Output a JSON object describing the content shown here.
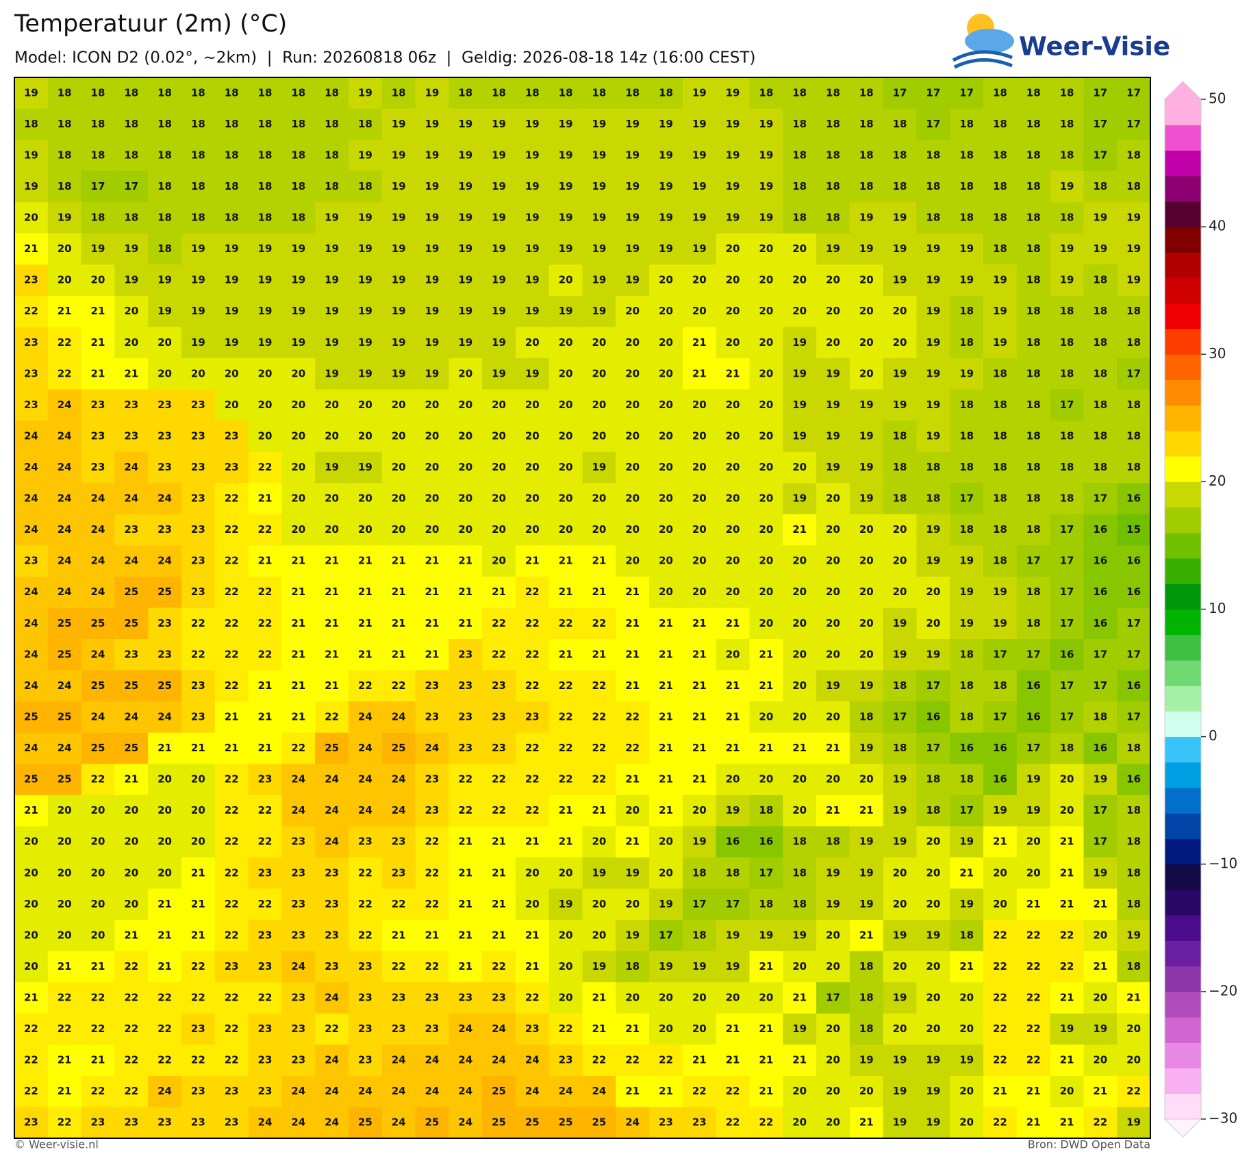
{
  "header": {
    "title": "Temperatuur (2m) (°C)",
    "subtitle": "Model: ICON D2 (0.02°, ~2km)  |  Run: 20260818 06z  |  Geldig: 2026-08-18 14z (16:00 CEST)",
    "logo": "Weer-Visie"
  },
  "footer": {
    "left": "© Weer-visie.nl",
    "right": "Bron: DWD Open Data"
  },
  "map": {
    "values": [
      [
        19,
        18,
        18,
        18,
        18,
        18,
        18,
        18,
        18,
        18,
        19,
        18,
        19,
        18,
        18,
        18,
        18,
        18,
        18,
        18,
        19,
        19,
        18,
        18,
        18,
        18,
        17,
        17,
        17,
        18,
        18,
        18,
        17,
        17
      ],
      [
        18,
        18,
        18,
        18,
        18,
        18,
        18,
        18,
        18,
        18,
        18,
        19,
        19,
        19,
        19,
        19,
        19,
        19,
        19,
        19,
        19,
        19,
        19,
        18,
        18,
        18,
        18,
        17,
        18,
        18,
        18,
        18,
        17,
        17
      ],
      [
        19,
        18,
        18,
        18,
        18,
        18,
        18,
        18,
        18,
        18,
        19,
        19,
        19,
        19,
        19,
        19,
        19,
        19,
        19,
        19,
        19,
        19,
        19,
        18,
        18,
        18,
        18,
        18,
        18,
        18,
        18,
        18,
        17,
        18
      ],
      [
        19,
        18,
        17,
        17,
        18,
        18,
        18,
        18,
        18,
        18,
        18,
        19,
        19,
        19,
        19,
        19,
        19,
        19,
        19,
        19,
        19,
        19,
        19,
        18,
        18,
        18,
        18,
        18,
        18,
        18,
        18,
        19,
        18,
        18
      ],
      [
        20,
        19,
        18,
        18,
        18,
        18,
        18,
        18,
        18,
        19,
        19,
        19,
        19,
        19,
        19,
        19,
        19,
        19,
        19,
        19,
        19,
        19,
        19,
        18,
        18,
        19,
        19,
        18,
        18,
        18,
        18,
        18,
        19,
        19
      ],
      [
        21,
        20,
        19,
        19,
        18,
        19,
        19,
        19,
        19,
        19,
        19,
        19,
        19,
        19,
        19,
        19,
        19,
        19,
        19,
        19,
        19,
        20,
        20,
        20,
        19,
        19,
        19,
        19,
        19,
        18,
        18,
        19,
        19,
        19
      ],
      [
        23,
        20,
        20,
        19,
        19,
        19,
        19,
        19,
        19,
        19,
        19,
        19,
        19,
        19,
        19,
        19,
        20,
        19,
        19,
        20,
        20,
        20,
        20,
        20,
        20,
        20,
        19,
        19,
        19,
        19,
        18,
        19,
        18,
        19
      ],
      [
        22,
        21,
        21,
        20,
        19,
        19,
        19,
        19,
        19,
        19,
        19,
        19,
        19,
        19,
        19,
        19,
        19,
        19,
        20,
        20,
        20,
        20,
        20,
        20,
        20,
        20,
        20,
        19,
        18,
        19,
        18,
        18,
        18,
        18
      ],
      [
        23,
        22,
        21,
        20,
        20,
        19,
        19,
        19,
        19,
        19,
        19,
        19,
        19,
        19,
        19,
        20,
        20,
        20,
        20,
        20,
        21,
        20,
        20,
        19,
        20,
        20,
        20,
        19,
        18,
        19,
        18,
        18,
        18,
        18
      ],
      [
        23,
        22,
        21,
        21,
        20,
        20,
        20,
        20,
        20,
        19,
        19,
        19,
        19,
        20,
        19,
        19,
        20,
        20,
        20,
        20,
        21,
        21,
        20,
        19,
        19,
        20,
        19,
        19,
        19,
        18,
        18,
        18,
        18,
        17
      ],
      [
        23,
        24,
        23,
        23,
        23,
        23,
        20,
        20,
        20,
        20,
        20,
        20,
        20,
        20,
        20,
        20,
        20,
        20,
        20,
        20,
        20,
        20,
        20,
        19,
        19,
        19,
        19,
        19,
        18,
        18,
        18,
        17,
        18,
        18
      ],
      [
        24,
        24,
        23,
        23,
        23,
        23,
        23,
        20,
        20,
        20,
        20,
        20,
        20,
        20,
        20,
        20,
        20,
        20,
        20,
        20,
        20,
        20,
        20,
        19,
        19,
        19,
        18,
        19,
        18,
        18,
        18,
        18,
        18,
        18
      ],
      [
        24,
        24,
        23,
        24,
        23,
        23,
        23,
        22,
        20,
        19,
        19,
        20,
        20,
        20,
        20,
        20,
        20,
        19,
        20,
        20,
        20,
        20,
        20,
        20,
        19,
        19,
        18,
        18,
        18,
        18,
        18,
        18,
        18,
        18
      ],
      [
        24,
        24,
        24,
        24,
        24,
        23,
        22,
        21,
        20,
        20,
        20,
        20,
        20,
        20,
        20,
        20,
        20,
        20,
        20,
        20,
        20,
        20,
        20,
        19,
        20,
        19,
        18,
        18,
        17,
        18,
        18,
        18,
        17,
        16
      ],
      [
        24,
        24,
        24,
        23,
        23,
        23,
        22,
        22,
        20,
        20,
        20,
        20,
        20,
        20,
        20,
        20,
        20,
        20,
        20,
        20,
        20,
        20,
        20,
        21,
        20,
        20,
        20,
        19,
        18,
        18,
        18,
        17,
        16,
        15
      ],
      [
        23,
        24,
        24,
        24,
        24,
        23,
        22,
        21,
        21,
        21,
        21,
        21,
        21,
        21,
        20,
        21,
        21,
        21,
        20,
        20,
        20,
        20,
        20,
        20,
        20,
        20,
        20,
        19,
        19,
        18,
        17,
        17,
        16,
        16
      ],
      [
        24,
        24,
        24,
        25,
        25,
        23,
        22,
        22,
        21,
        21,
        21,
        21,
        21,
        21,
        21,
        22,
        21,
        21,
        21,
        20,
        20,
        20,
        20,
        20,
        20,
        20,
        20,
        20,
        19,
        19,
        18,
        17,
        16,
        16
      ],
      [
        24,
        25,
        25,
        25,
        23,
        22,
        22,
        22,
        21,
        21,
        21,
        21,
        21,
        21,
        22,
        22,
        22,
        22,
        21,
        21,
        21,
        21,
        20,
        20,
        20,
        20,
        19,
        20,
        19,
        19,
        18,
        17,
        16,
        17
      ],
      [
        24,
        25,
        24,
        23,
        23,
        22,
        22,
        22,
        21,
        21,
        21,
        21,
        21,
        23,
        22,
        22,
        21,
        21,
        21,
        21,
        21,
        20,
        21,
        20,
        20,
        20,
        19,
        19,
        18,
        17,
        17,
        16,
        17,
        17
      ],
      [
        24,
        24,
        25,
        25,
        25,
        23,
        22,
        21,
        21,
        21,
        22,
        22,
        23,
        23,
        23,
        22,
        22,
        22,
        21,
        21,
        21,
        21,
        21,
        20,
        19,
        19,
        18,
        17,
        18,
        18,
        16,
        17,
        17,
        16
      ],
      [
        25,
        25,
        24,
        24,
        24,
        23,
        21,
        21,
        21,
        22,
        24,
        24,
        23,
        23,
        23,
        23,
        22,
        22,
        22,
        21,
        21,
        21,
        20,
        20,
        20,
        18,
        17,
        16,
        18,
        17,
        16,
        17,
        18,
        17
      ],
      [
        24,
        24,
        25,
        25,
        21,
        21,
        21,
        21,
        22,
        25,
        24,
        25,
        24,
        23,
        23,
        22,
        22,
        22,
        22,
        21,
        21,
        21,
        21,
        21,
        21,
        19,
        18,
        17,
        16,
        16,
        17,
        18,
        16,
        18
      ],
      [
        25,
        25,
        22,
        21,
        20,
        20,
        22,
        23,
        24,
        24,
        24,
        24,
        23,
        22,
        22,
        22,
        22,
        22,
        21,
        21,
        21,
        20,
        20,
        20,
        20,
        20,
        19,
        18,
        18,
        16,
        19,
        20,
        19,
        16
      ],
      [
        21,
        20,
        20,
        20,
        20,
        20,
        22,
        22,
        24,
        24,
        24,
        24,
        23,
        22,
        22,
        22,
        21,
        21,
        20,
        21,
        20,
        19,
        18,
        20,
        21,
        21,
        19,
        18,
        17,
        19,
        19,
        20,
        17,
        18
      ],
      [
        20,
        20,
        20,
        20,
        20,
        20,
        22,
        22,
        23,
        24,
        23,
        23,
        22,
        21,
        21,
        21,
        21,
        20,
        21,
        20,
        19,
        16,
        16,
        18,
        18,
        19,
        19,
        20,
        19,
        21,
        20,
        21,
        17,
        18
      ],
      [
        20,
        20,
        20,
        20,
        20,
        21,
        22,
        23,
        23,
        23,
        22,
        23,
        22,
        21,
        21,
        20,
        20,
        19,
        19,
        20,
        18,
        18,
        17,
        18,
        19,
        19,
        20,
        20,
        21,
        20,
        20,
        21,
        19,
        18
      ],
      [
        20,
        20,
        20,
        20,
        21,
        21,
        22,
        22,
        23,
        23,
        22,
        22,
        22,
        21,
        21,
        20,
        19,
        20,
        20,
        19,
        17,
        17,
        18,
        18,
        19,
        19,
        20,
        20,
        19,
        20,
        21,
        21,
        21,
        18
      ],
      [
        20,
        20,
        20,
        21,
        21,
        21,
        22,
        23,
        23,
        23,
        22,
        21,
        21,
        21,
        21,
        21,
        20,
        20,
        19,
        17,
        18,
        19,
        19,
        19,
        20,
        21,
        19,
        19,
        18,
        22,
        22,
        22,
        20,
        19
      ],
      [
        20,
        21,
        21,
        22,
        21,
        22,
        23,
        23,
        24,
        23,
        23,
        22,
        22,
        21,
        22,
        21,
        20,
        19,
        18,
        19,
        19,
        19,
        21,
        20,
        20,
        18,
        20,
        20,
        21,
        22,
        22,
        22,
        21,
        18
      ],
      [
        21,
        22,
        22,
        22,
        22,
        22,
        22,
        22,
        23,
        24,
        23,
        23,
        23,
        23,
        23,
        22,
        20,
        21,
        20,
        20,
        20,
        20,
        20,
        21,
        17,
        18,
        19,
        20,
        20,
        22,
        22,
        21,
        20,
        21
      ],
      [
        22,
        22,
        22,
        22,
        22,
        23,
        22,
        23,
        23,
        22,
        23,
        23,
        23,
        24,
        24,
        23,
        22,
        21,
        21,
        20,
        20,
        21,
        21,
        19,
        20,
        18,
        20,
        20,
        20,
        22,
        22,
        19,
        19,
        20
      ],
      [
        22,
        21,
        21,
        22,
        22,
        22,
        22,
        23,
        23,
        24,
        23,
        24,
        24,
        24,
        24,
        24,
        23,
        22,
        22,
        22,
        21,
        21,
        21,
        21,
        20,
        19,
        19,
        19,
        19,
        22,
        22,
        21,
        20,
        20
      ],
      [
        22,
        21,
        22,
        22,
        24,
        23,
        23,
        23,
        24,
        24,
        24,
        24,
        24,
        24,
        25,
        24,
        24,
        24,
        21,
        21,
        22,
        22,
        21,
        20,
        20,
        20,
        19,
        19,
        20,
        21,
        21,
        20,
        21,
        22
      ],
      [
        23,
        22,
        23,
        23,
        23,
        23,
        23,
        24,
        24,
        24,
        25,
        24,
        25,
        24,
        25,
        25,
        25,
        25,
        24,
        23,
        23,
        22,
        22,
        20,
        20,
        21,
        19,
        19,
        20,
        22,
        21,
        21,
        22,
        19
      ]
    ]
  },
  "colorbar": {
    "lim": [
      -30,
      50
    ],
    "ticks": [
      50,
      40,
      30,
      20,
      10,
      0,
      {
        "value": -10,
        "label": "−10"
      },
      {
        "value": -20,
        "label": "−20"
      },
      {
        "value": -30,
        "label": "−30"
      }
    ],
    "colors": [
      "#ffdcf8",
      "#f9b0f0",
      "#e888e6",
      "#d064d0",
      "#b04cbc",
      "#8c36aa",
      "#6a20a0",
      "#4a0c8c",
      "#2a0868",
      "#140a48",
      "#001a80",
      "#0044a8",
      "#0070cc",
      "#00a0e4",
      "#38c4f8",
      "#d0fff0",
      "#a4f0a4",
      "#70d870",
      "#40c040",
      "#00b400",
      "#00980a",
      "#38b000",
      "#70c000",
      "#a0cc00",
      "#c8d800",
      "#ffff00",
      "#ffd800",
      "#ffb400",
      "#ff8c00",
      "#ff6400",
      "#ff3c00",
      "#f00000",
      "#d00000",
      "#b00000",
      "#800000",
      "#580030",
      "#8c0070",
      "#c000a8",
      "#f050d0",
      "#ffb0e0"
    ]
  }
}
